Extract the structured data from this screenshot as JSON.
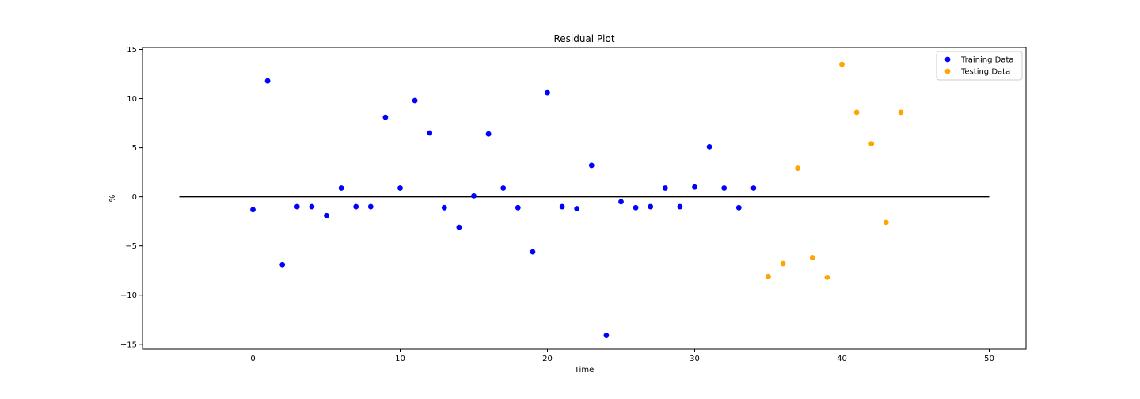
{
  "chart_data": {
    "type": "scatter",
    "title": "Residual Plot",
    "xlabel": "Time",
    "ylabel": "%",
    "xlim": [
      -7.5,
      52.5
    ],
    "ylim": [
      -15.5,
      15.2
    ],
    "xticks": [
      0,
      10,
      20,
      30,
      40,
      50
    ],
    "yticks": [
      -15,
      -10,
      -5,
      0,
      5,
      10,
      15
    ],
    "ytick_labels": [
      "−15",
      "−10",
      "−5",
      "0",
      "5",
      "10",
      "15"
    ],
    "grid": false,
    "legend_position": "top-right",
    "hline": {
      "y": 0,
      "xmin": -5,
      "xmax": 50,
      "color": "#000000"
    },
    "series": [
      {
        "name": "Training Data",
        "color": "#0000ff",
        "points": [
          [
            0,
            -1.3
          ],
          [
            1,
            11.8
          ],
          [
            2,
            -6.9
          ],
          [
            3,
            -1.0
          ],
          [
            4,
            -1.0
          ],
          [
            5,
            -1.9
          ],
          [
            6,
            0.9
          ],
          [
            7,
            -1.0
          ],
          [
            8,
            -1.0
          ],
          [
            9,
            8.1
          ],
          [
            10,
            0.9
          ],
          [
            11,
            9.8
          ],
          [
            12,
            6.5
          ],
          [
            13,
            -1.1
          ],
          [
            14,
            -3.1
          ],
          [
            15,
            0.1
          ],
          [
            16,
            6.4
          ],
          [
            17,
            0.9
          ],
          [
            18,
            -1.1
          ],
          [
            19,
            -5.6
          ],
          [
            20,
            10.6
          ],
          [
            21,
            -1.0
          ],
          [
            22,
            -1.2
          ],
          [
            23,
            3.2
          ],
          [
            24,
            -14.1
          ],
          [
            25,
            -0.5
          ],
          [
            26,
            -1.1
          ],
          [
            27,
            -1.0
          ],
          [
            28,
            0.9
          ],
          [
            29,
            -1.0
          ],
          [
            30,
            1.0
          ],
          [
            31,
            5.1
          ],
          [
            32,
            0.9
          ],
          [
            33,
            -1.1
          ],
          [
            34,
            0.9
          ]
        ]
      },
      {
        "name": "Testing Data",
        "color": "#ffa500",
        "points": [
          [
            35,
            -8.1
          ],
          [
            36,
            -6.8
          ],
          [
            37,
            2.9
          ],
          [
            38,
            -6.2
          ],
          [
            39,
            -8.2
          ],
          [
            40,
            13.5
          ],
          [
            41,
            8.6
          ],
          [
            42,
            5.4
          ],
          [
            43,
            -2.6
          ],
          [
            44,
            8.6
          ]
        ]
      }
    ]
  }
}
